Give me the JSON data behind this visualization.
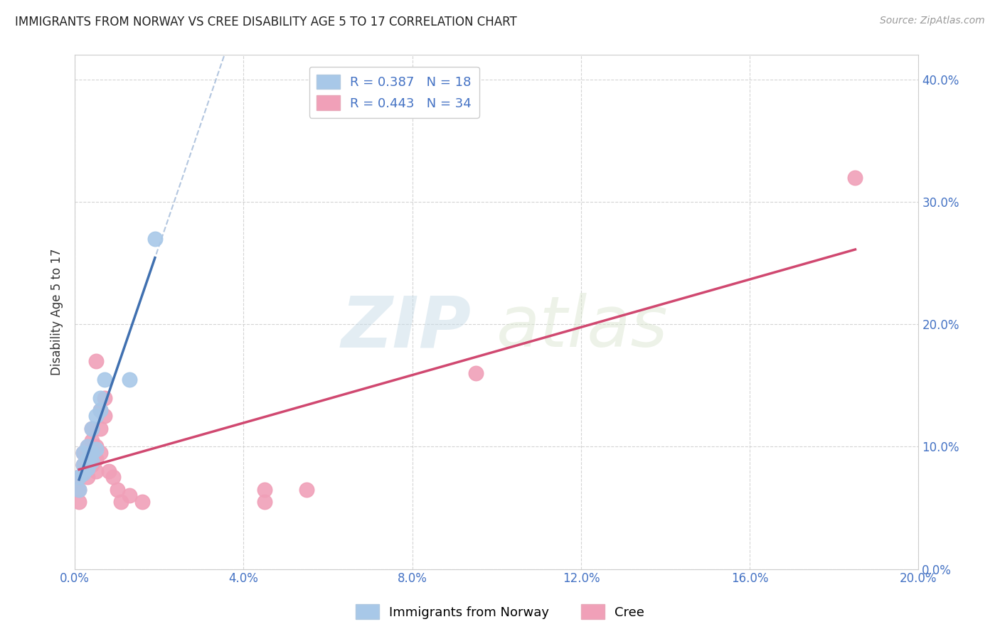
{
  "title": "IMMIGRANTS FROM NORWAY VS CREE DISABILITY AGE 5 TO 17 CORRELATION CHART",
  "source": "Source: ZipAtlas.com",
  "ylabel": "Disability Age 5 to 17",
  "xlim": [
    0.0,
    0.2
  ],
  "ylim": [
    0.0,
    0.42
  ],
  "xticks": [
    0.0,
    0.04,
    0.08,
    0.12,
    0.16,
    0.2
  ],
  "yticks": [
    0.0,
    0.1,
    0.2,
    0.3,
    0.4
  ],
  "norway_R": 0.387,
  "norway_N": 18,
  "cree_R": 0.443,
  "cree_N": 34,
  "norway_color": "#a8c8e8",
  "norway_line_color": "#4070b0",
  "norway_line_color2": "#a0b8d8",
  "cree_color": "#f0a0b8",
  "cree_line_color": "#d04870",
  "norway_scatter_x": [
    0.001,
    0.001,
    0.002,
    0.002,
    0.002,
    0.003,
    0.003,
    0.003,
    0.004,
    0.004,
    0.004,
    0.005,
    0.005,
    0.006,
    0.006,
    0.007,
    0.013,
    0.019
  ],
  "norway_scatter_y": [
    0.075,
    0.065,
    0.078,
    0.085,
    0.095,
    0.082,
    0.09,
    0.1,
    0.088,
    0.095,
    0.115,
    0.098,
    0.125,
    0.13,
    0.14,
    0.155,
    0.155,
    0.27
  ],
  "cree_scatter_x": [
    0.001,
    0.001,
    0.001,
    0.002,
    0.002,
    0.002,
    0.003,
    0.003,
    0.003,
    0.003,
    0.004,
    0.004,
    0.004,
    0.004,
    0.005,
    0.005,
    0.005,
    0.005,
    0.006,
    0.006,
    0.006,
    0.007,
    0.007,
    0.008,
    0.009,
    0.01,
    0.011,
    0.013,
    0.016,
    0.045,
    0.045,
    0.055,
    0.095,
    0.185
  ],
  "cree_scatter_y": [
    0.075,
    0.065,
    0.055,
    0.085,
    0.095,
    0.078,
    0.1,
    0.09,
    0.082,
    0.075,
    0.105,
    0.095,
    0.085,
    0.115,
    0.1,
    0.09,
    0.08,
    0.17,
    0.13,
    0.115,
    0.095,
    0.14,
    0.125,
    0.08,
    0.075,
    0.065,
    0.055,
    0.06,
    0.055,
    0.065,
    0.055,
    0.065,
    0.16,
    0.32
  ],
  "watermark_zip": "ZIP",
  "watermark_atlas": "atlas",
  "background_color": "#ffffff",
  "grid_color": "#d0d0d0"
}
